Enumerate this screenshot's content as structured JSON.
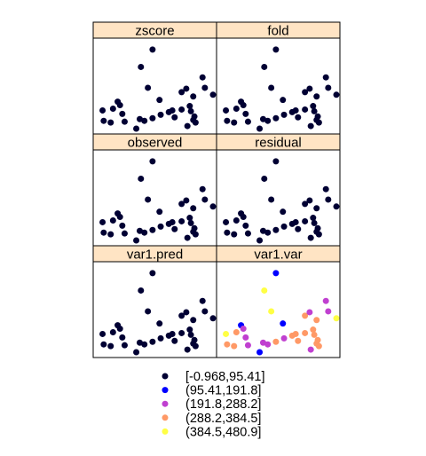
{
  "chart_data": {
    "type": "scatter",
    "layout": "lattice 2 columns x 3 rows",
    "xlim": [
      0,
      100
    ],
    "ylim": [
      0,
      100
    ],
    "panels": [
      {
        "title": "zscore"
      },
      {
        "title": "fold"
      },
      {
        "title": "observed"
      },
      {
        "title": "residual"
      },
      {
        "title": "var1.pred"
      },
      {
        "title": "var1.var"
      }
    ],
    "points": [
      {
        "x": 48,
        "y": 92
      },
      {
        "x": 44,
        "y": 48
      },
      {
        "x": 38,
        "y": 72
      },
      {
        "x": 5,
        "y": 22
      },
      {
        "x": 18,
        "y": 32
      },
      {
        "x": 14,
        "y": 24
      },
      {
        "x": 20,
        "y": 28
      },
      {
        "x": 22,
        "y": 18
      },
      {
        "x": 12,
        "y": 8
      },
      {
        "x": 6,
        "y": 10
      },
      {
        "x": 24,
        "y": 9
      },
      {
        "x": 34,
        "y": 1
      },
      {
        "x": 37,
        "y": 12
      },
      {
        "x": 41,
        "y": 10
      },
      {
        "x": 48,
        "y": 13
      },
      {
        "x": 55,
        "y": 17
      },
      {
        "x": 62,
        "y": 20
      },
      {
        "x": 65,
        "y": 22
      },
      {
        "x": 73,
        "y": 23
      },
      {
        "x": 67,
        "y": 14
      },
      {
        "x": 54,
        "y": 34
      },
      {
        "x": 78,
        "y": 4
      },
      {
        "x": 81,
        "y": 21
      },
      {
        "x": 80,
        "y": 27
      },
      {
        "x": 83,
        "y": 11
      },
      {
        "x": 84,
        "y": 15
      },
      {
        "x": 85,
        "y": 8
      },
      {
        "x": 83,
        "y": 38
      },
      {
        "x": 91,
        "y": 60
      },
      {
        "x": 93,
        "y": 48
      },
      {
        "x": 100,
        "y": 40
      },
      {
        "x": 73,
        "y": 43
      },
      {
        "x": 77,
        "y": 47
      }
    ],
    "var_classes": [
      1,
      4,
      4,
      4,
      1,
      3,
      2,
      2,
      3,
      3,
      2,
      1,
      2,
      2,
      3,
      2,
      3,
      3,
      3,
      3,
      1,
      2,
      3,
      3,
      3,
      3,
      3,
      3,
      2,
      2,
      4,
      3,
      2
    ],
    "default_point_color": "#000033",
    "legend": {
      "placement": "bottom",
      "entries": [
        {
          "label": "[-0.968,95.41]",
          "color": "#000033"
        },
        {
          "label": "(95.41,191.8]",
          "color": "#0000ff"
        },
        {
          "label": "(191.8,288.2]",
          "color": "#c040d0"
        },
        {
          "label": "(288.2,384.5]",
          "color": "#ff9966"
        },
        {
          "label": "(384.5,480.9]",
          "color": "#ffff44"
        }
      ]
    },
    "strip_color": "#ffe4c4",
    "colored_panel_index": 5
  }
}
